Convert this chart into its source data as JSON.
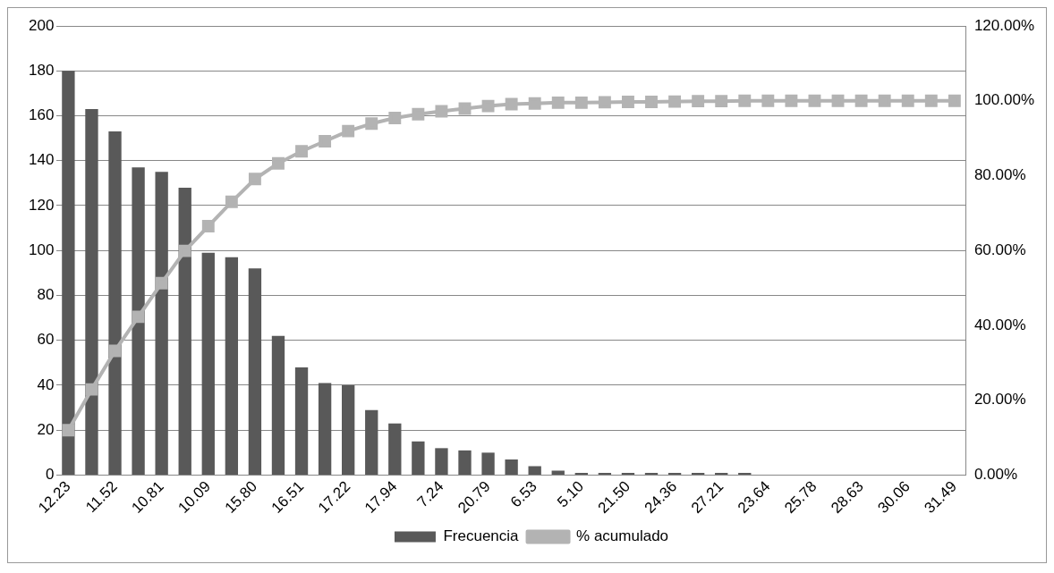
{
  "chart_data": {
    "type": "bar",
    "categories": [
      "12.23",
      null,
      "11.52",
      null,
      "10.81",
      null,
      "10.09",
      null,
      "15.80",
      null,
      "16.51",
      null,
      "17.22",
      null,
      "17.94",
      null,
      "7.24",
      null,
      "20.79",
      null,
      "6.53",
      null,
      "5.10",
      null,
      "21.50",
      null,
      "24.36",
      null,
      "27.21",
      null,
      "23.64",
      null,
      "25.78",
      null,
      "28.63",
      null,
      "30.06",
      null,
      "31.49"
    ],
    "series": [
      {
        "name": "Frecuencia",
        "color": "#595959",
        "values": [
          180,
          163,
          153,
          137,
          135,
          128,
          99,
          97,
          92,
          62,
          48,
          41,
          40,
          29,
          23,
          15,
          12,
          11,
          10,
          7,
          4,
          2,
          1,
          1,
          1,
          1,
          1,
          1,
          1,
          1,
          0,
          0,
          0,
          0,
          0,
          0,
          0,
          0,
          0
        ]
      },
      {
        "name": "% acumulado",
        "type": "line",
        "axis": "y2",
        "color": "#b3b3b3",
        "marker": "square",
        "values": [
          12.0,
          22.9,
          33.2,
          42.3,
          51.3,
          59.9,
          66.5,
          73.0,
          79.1,
          83.3,
          86.5,
          89.2,
          91.9,
          93.9,
          95.4,
          96.4,
          97.2,
          97.9,
          98.6,
          99.1,
          99.3,
          99.5,
          99.5,
          99.6,
          99.7,
          99.7,
          99.8,
          99.9,
          99.9,
          100,
          100,
          100,
          100,
          100,
          100,
          100,
          100,
          100,
          100
        ]
      }
    ],
    "ylim": [
      0,
      200
    ],
    "yticks": [
      0,
      20,
      40,
      60,
      80,
      100,
      120,
      140,
      160,
      180,
      200
    ],
    "y2lim": [
      0,
      120
    ],
    "y2ticks": [
      {
        "value": 0,
        "label": "0.00%"
      },
      {
        "value": 20,
        "label": "20.00%"
      },
      {
        "value": 40,
        "label": "40.00%"
      },
      {
        "value": 60,
        "label": "60.00%"
      },
      {
        "value": 80,
        "label": "80.00%"
      },
      {
        "value": 100,
        "label": "100.00%"
      },
      {
        "value": 120,
        "label": "120.00%"
      }
    ],
    "grid": "y",
    "legend": "bottom"
  }
}
